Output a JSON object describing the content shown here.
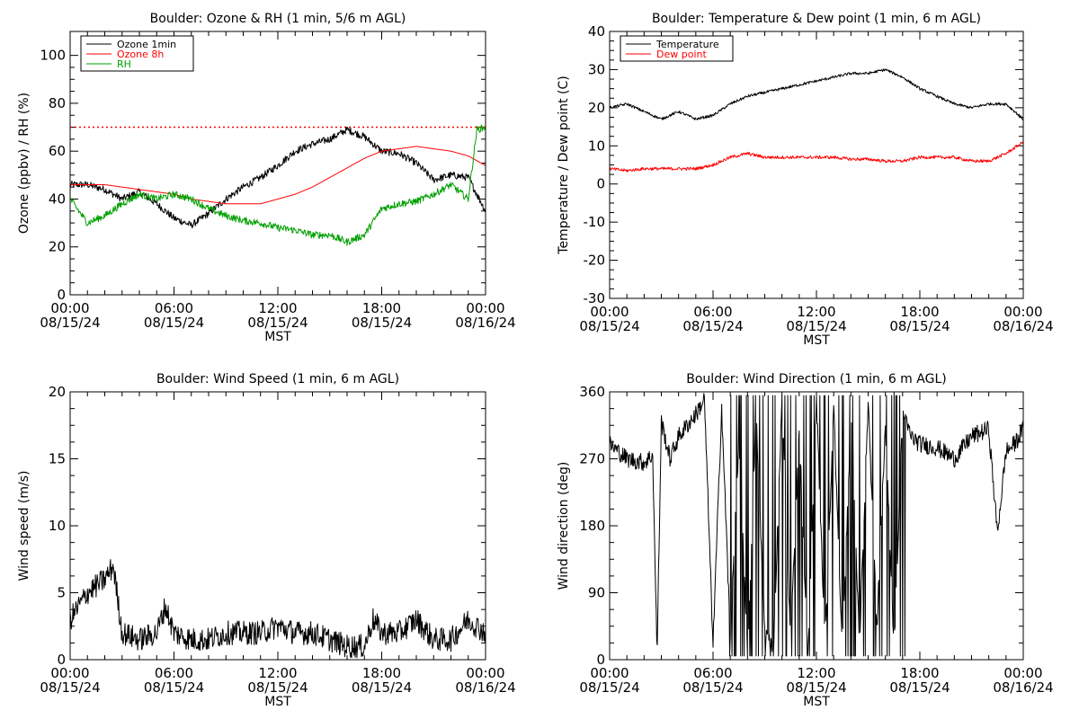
{
  "chart_data": [
    {
      "type": "line",
      "title": "Boulder: Ozone & RH (1 min, 5/6 m AGL)",
      "xlabel": "MST",
      "ylabel": "Ozone (ppbv) / RH (%)",
      "xlim": [
        "2024-08-15 00:00",
        "2024-08-16 00:00"
      ],
      "ylim": [
        0,
        110
      ],
      "yticks": [
        0,
        20,
        40,
        60,
        80,
        100
      ],
      "xticks": [
        {
          "time": "00:00",
          "date": "08/15/24"
        },
        {
          "time": "06:00",
          "date": "08/15/24"
        },
        {
          "time": "12:00",
          "date": "08/15/24"
        },
        {
          "time": "18:00",
          "date": "08/15/24"
        },
        {
          "time": "00:00",
          "date": "08/16/24"
        }
      ],
      "reference_line": {
        "y": 70,
        "color": "#ff0000",
        "style": "dotted"
      },
      "legend": {
        "placement": "top-left",
        "entries": [
          "Ozone 1min",
          "Ozone 8h",
          "RH"
        ]
      },
      "series": [
        {
          "name": "Ozone 1min",
          "color": "#000000",
          "x": [
            "00:00",
            "01:00",
            "02:00",
            "03:00",
            "04:00",
            "05:00",
            "06:00",
            "07:00",
            "08:00",
            "09:00",
            "10:00",
            "11:00",
            "12:00",
            "13:00",
            "14:00",
            "15:00",
            "16:00",
            "17:00",
            "18:00",
            "19:00",
            "20:00",
            "21:00",
            "22:00",
            "23:00",
            "24:00"
          ],
          "y": [
            46,
            46,
            44,
            40,
            43,
            38,
            32,
            29,
            34,
            40,
            45,
            49,
            54,
            60,
            63,
            65,
            69,
            66,
            60,
            59,
            55,
            48,
            50,
            49,
            35
          ]
        },
        {
          "name": "Ozone 8h",
          "color": "#ff0000",
          "x": [
            "00:00",
            "01:00",
            "02:00",
            "03:00",
            "04:00",
            "05:00",
            "06:00",
            "07:00",
            "08:00",
            "09:00",
            "10:00",
            "11:00",
            "12:00",
            "13:00",
            "14:00",
            "15:00",
            "16:00",
            "17:00",
            "18:00",
            "19:00",
            "20:00",
            "21:00",
            "22:00",
            "23:00",
            "24:00"
          ],
          "y": [
            46,
            46,
            46,
            45,
            44,
            43,
            42,
            40,
            39,
            38,
            38,
            38,
            40,
            42,
            45,
            49,
            53,
            57,
            60,
            61,
            62,
            61,
            60,
            58,
            54
          ]
        },
        {
          "name": "RH",
          "color": "#00a000",
          "x": [
            "00:00",
            "01:00",
            "02:00",
            "03:00",
            "04:00",
            "05:00",
            "06:00",
            "07:00",
            "08:00",
            "09:00",
            "10:00",
            "11:00",
            "12:00",
            "13:00",
            "14:00",
            "15:00",
            "16:00",
            "17:00",
            "18:00",
            "19:00",
            "20:00",
            "21:00",
            "22:00",
            "23:00",
            "23:30",
            "24:00"
          ],
          "y": [
            40,
            30,
            33,
            38,
            42,
            40,
            42,
            40,
            36,
            33,
            31,
            30,
            28,
            27,
            25,
            25,
            22,
            25,
            36,
            38,
            39,
            42,
            46,
            40,
            69,
            70
          ]
        }
      ]
    },
    {
      "type": "line",
      "title": "Boulder: Temperature & Dew point (1 min, 6 m AGL)",
      "xlabel": "MST",
      "ylabel": "Temperature / Dew point (C)",
      "xlim": [
        "2024-08-15 00:00",
        "2024-08-16 00:00"
      ],
      "ylim": [
        -30,
        40
      ],
      "yticks": [
        -30,
        -20,
        -10,
        0,
        10,
        20,
        30,
        40
      ],
      "xticks": [
        {
          "time": "00:00",
          "date": "08/15/24"
        },
        {
          "time": "06:00",
          "date": "08/15/24"
        },
        {
          "time": "12:00",
          "date": "08/15/24"
        },
        {
          "time": "18:00",
          "date": "08/15/24"
        },
        {
          "time": "00:00",
          "date": "08/16/24"
        }
      ],
      "legend": {
        "placement": "top-left",
        "entries": [
          "Temperature",
          "Dew point"
        ]
      },
      "series": [
        {
          "name": "Temperature",
          "color": "#000000",
          "x": [
            "00:00",
            "01:00",
            "02:00",
            "03:00",
            "04:00",
            "05:00",
            "06:00",
            "07:00",
            "08:00",
            "09:00",
            "10:00",
            "11:00",
            "12:00",
            "13:00",
            "14:00",
            "15:00",
            "16:00",
            "17:00",
            "18:00",
            "19:00",
            "20:00",
            "21:00",
            "22:00",
            "23:00",
            "24:00"
          ],
          "y": [
            20,
            21,
            19,
            17,
            19,
            17,
            18,
            21,
            23,
            24,
            25,
            26,
            27,
            28,
            29,
            29,
            30,
            28,
            25,
            23,
            21,
            20,
            21,
            21,
            17
          ]
        },
        {
          "name": "Dew point",
          "color": "#ff0000",
          "x": [
            "00:00",
            "01:00",
            "02:00",
            "03:00",
            "04:00",
            "05:00",
            "06:00",
            "07:00",
            "08:00",
            "09:00",
            "10:00",
            "11:00",
            "12:00",
            "13:00",
            "14:00",
            "15:00",
            "16:00",
            "17:00",
            "18:00",
            "19:00",
            "20:00",
            "21:00",
            "22:00",
            "23:00",
            "24:00"
          ],
          "y": [
            4,
            3.5,
            4,
            4,
            4,
            4,
            5,
            7,
            8,
            7,
            7,
            7,
            7,
            7,
            6.5,
            6.5,
            6,
            6,
            7,
            7,
            7,
            6,
            6,
            8,
            11
          ]
        }
      ]
    },
    {
      "type": "line",
      "title": "Boulder: Wind Speed (1 min, 6 m AGL)",
      "xlabel": "MST",
      "ylabel": "Wind speed (m/s)",
      "xlim": [
        "2024-08-15 00:00",
        "2024-08-16 00:00"
      ],
      "ylim": [
        0,
        20
      ],
      "yticks": [
        0,
        5,
        10,
        15,
        20
      ],
      "xticks": [
        {
          "time": "00:00",
          "date": "08/15/24"
        },
        {
          "time": "06:00",
          "date": "08/15/24"
        },
        {
          "time": "12:00",
          "date": "08/15/24"
        },
        {
          "time": "18:00",
          "date": "08/15/24"
        },
        {
          "time": "00:00",
          "date": "08/16/24"
        }
      ],
      "series": [
        {
          "color": "#000000",
          "x": [
            "00:00",
            "01:00",
            "02:00",
            "02:30",
            "03:00",
            "04:00",
            "05:00",
            "05:30",
            "06:00",
            "07:00",
            "08:00",
            "09:00",
            "10:00",
            "11:00",
            "12:00",
            "13:00",
            "14:00",
            "15:00",
            "16:00",
            "17:00",
            "17:30",
            "18:00",
            "19:00",
            "20:00",
            "21:00",
            "22:00",
            "23:00",
            "24:00"
          ],
          "y": [
            3,
            5,
            6,
            7,
            2,
            1.5,
            2,
            4,
            2,
            1.5,
            1.5,
            2,
            2,
            2,
            2.5,
            2,
            2,
            1.5,
            1,
            1,
            3,
            2,
            2,
            3,
            1.5,
            1.5,
            3,
            2
          ]
        }
      ]
    },
    {
      "type": "line",
      "title": "Boulder: Wind Direction (1 min, 6 m AGL)",
      "xlabel": "MST",
      "ylabel": "Wind direction (deg)",
      "xlim": [
        "2024-08-15 00:00",
        "2024-08-16 00:00"
      ],
      "ylim": [
        0,
        360
      ],
      "yticks": [
        0,
        90,
        180,
        270,
        360
      ],
      "xticks": [
        {
          "time": "00:00",
          "date": "08/15/24"
        },
        {
          "time": "06:00",
          "date": "08/15/24"
        },
        {
          "time": "12:00",
          "date": "08/15/24"
        },
        {
          "time": "18:00",
          "date": "08/15/24"
        },
        {
          "time": "00:00",
          "date": "08/16/24"
        }
      ],
      "series": [
        {
          "color": "#000000",
          "x": [
            "00:00",
            "01:00",
            "02:00",
            "02:30",
            "02:45",
            "03:00",
            "03:30",
            "04:00",
            "05:00",
            "05:30",
            "06:00",
            "06:30",
            "07:00",
            "07:30",
            "08:00",
            "08:30",
            "09:00",
            "09:30",
            "10:00",
            "10:30",
            "11:00",
            "11:30",
            "12:00",
            "12:30",
            "13:00",
            "13:30",
            "14:00",
            "14:30",
            "15:00",
            "15:30",
            "16:00",
            "16:30",
            "17:00",
            "17:30",
            "18:00",
            "19:00",
            "20:00",
            "21:00",
            "22:00",
            "22:30",
            "23:00",
            "23:30",
            "24:00"
          ],
          "y": [
            290,
            270,
            265,
            275,
            5,
            320,
            270,
            300,
            330,
            350,
            20,
            340,
            30,
            300,
            10,
            330,
            40,
            10,
            350,
            30,
            310,
            0,
            350,
            20,
            340,
            10,
            330,
            20,
            350,
            40,
            320,
            10,
            330,
            300,
            290,
            285,
            270,
            300,
            310,
            170,
            280,
            290,
            310
          ]
        }
      ]
    }
  ]
}
